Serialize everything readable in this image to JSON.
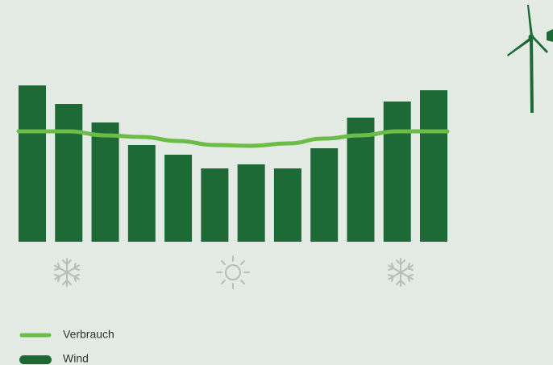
{
  "chart_data": {
    "type": "bar",
    "categories": [
      null,
      null,
      null,
      null,
      null,
      null,
      null,
      null,
      null,
      null,
      null,
      null
    ],
    "ylim": [
      0,
      200
    ],
    "legend": "bottom-left",
    "series": [
      {
        "name": "Wind",
        "type": "bar",
        "color": "#1d6a36",
        "values": [
          194,
          171,
          148,
          120,
          108,
          91,
          96,
          91,
          116,
          154,
          174,
          188
        ]
      },
      {
        "name": "Verbrauch",
        "type": "line",
        "color": "#6cbd48",
        "values": [
          137,
          137,
          132,
          130,
          125,
          120,
          119,
          122,
          128,
          132,
          137,
          137
        ]
      }
    ]
  }
}
